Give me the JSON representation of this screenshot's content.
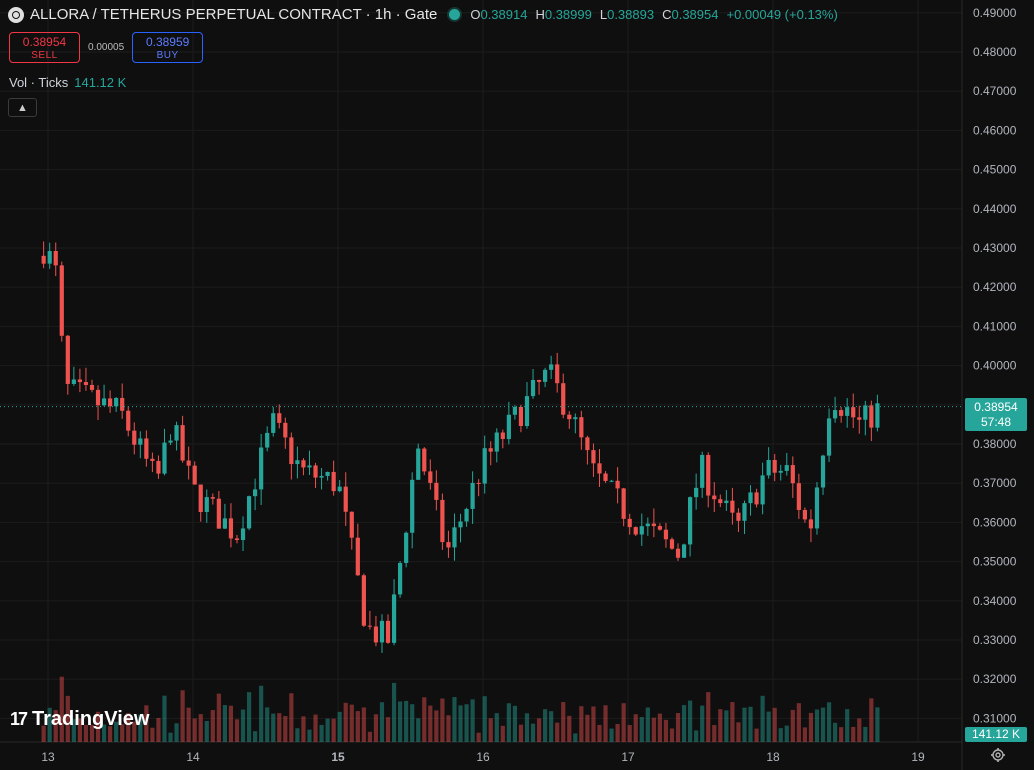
{
  "header": {
    "title": "ALLORA / TETHERUS PERPETUAL CONTRACT · 1h · Gate",
    "ohlc": {
      "o_label": "O",
      "o": "0.38914",
      "h_label": "H",
      "h": "0.38999",
      "l_label": "L",
      "l": "0.38893",
      "c_label": "C",
      "c": "0.38954",
      "change": "+0.00049 (+0.13%)"
    }
  },
  "trade": {
    "sell_price": "0.38954",
    "sell_label": "SELL",
    "spread": "0.00005",
    "buy_price": "0.38959",
    "buy_label": "BUY"
  },
  "volume_legend": {
    "label": "Vol · Ticks",
    "value": "141.12 K"
  },
  "branding": {
    "name": "TradingView"
  },
  "price_scale": {
    "ticks": [
      "0.49000",
      "0.48000",
      "0.47000",
      "0.46000",
      "0.45000",
      "0.44000",
      "0.43000",
      "0.42000",
      "0.41000",
      "0.40000",
      "0.39000",
      "0.38000",
      "0.37000",
      "0.36000",
      "0.35000",
      "0.34000",
      "0.33000",
      "0.32000",
      "0.31000"
    ],
    "current_price": "0.38954",
    "countdown": "57:48",
    "volume_tag": "141.12 K"
  },
  "time_scale": {
    "labels": [
      "13",
      "14",
      "15",
      "16",
      "17",
      "18",
      "19"
    ]
  },
  "colors": {
    "up": "#26a69a",
    "down": "#ef5350",
    "background": "#0f0f0f"
  },
  "icons": {
    "settings": "gear-icon",
    "collapse": "chevron-up-icon",
    "status": "market-open-dot"
  },
  "chart_data": {
    "type": "candlestick",
    "x_labels": [
      "13",
      "14",
      "15",
      "16",
      "17",
      "18",
      "19"
    ],
    "ylim": [
      0.305,
      0.492
    ],
    "anchors": [
      {
        "day": 12.97,
        "close": 0.43
      },
      {
        "day": 13.05,
        "close": 0.425
      },
      {
        "day": 13.12,
        "close": 0.394
      },
      {
        "day": 13.5,
        "close": 0.388
      },
      {
        "day": 13.75,
        "close": 0.37
      },
      {
        "day": 13.85,
        "close": 0.385
      },
      {
        "day": 14.0,
        "close": 0.368
      },
      {
        "day": 14.3,
        "close": 0.357
      },
      {
        "day": 14.55,
        "close": 0.385
      },
      {
        "day": 14.75,
        "close": 0.373
      },
      {
        "day": 15.0,
        "close": 0.37
      },
      {
        "day": 15.2,
        "close": 0.333
      },
      {
        "day": 15.35,
        "close": 0.33
      },
      {
        "day": 15.55,
        "close": 0.38
      },
      {
        "day": 15.75,
        "close": 0.352
      },
      {
        "day": 16.0,
        "close": 0.375
      },
      {
        "day": 16.25,
        "close": 0.388
      },
      {
        "day": 16.45,
        "close": 0.398
      },
      {
        "day": 16.6,
        "close": 0.388
      },
      {
        "day": 16.75,
        "close": 0.373
      },
      {
        "day": 17.0,
        "close": 0.362
      },
      {
        "day": 17.35,
        "close": 0.352
      },
      {
        "day": 17.5,
        "close": 0.374
      },
      {
        "day": 17.75,
        "close": 0.358
      },
      {
        "day": 17.95,
        "close": 0.373
      },
      {
        "day": 18.1,
        "close": 0.373
      },
      {
        "day": 18.25,
        "close": 0.357
      },
      {
        "day": 18.4,
        "close": 0.393
      },
      {
        "day": 18.6,
        "close": 0.385
      },
      {
        "day": 18.75,
        "close": 0.3895
      }
    ]
  }
}
